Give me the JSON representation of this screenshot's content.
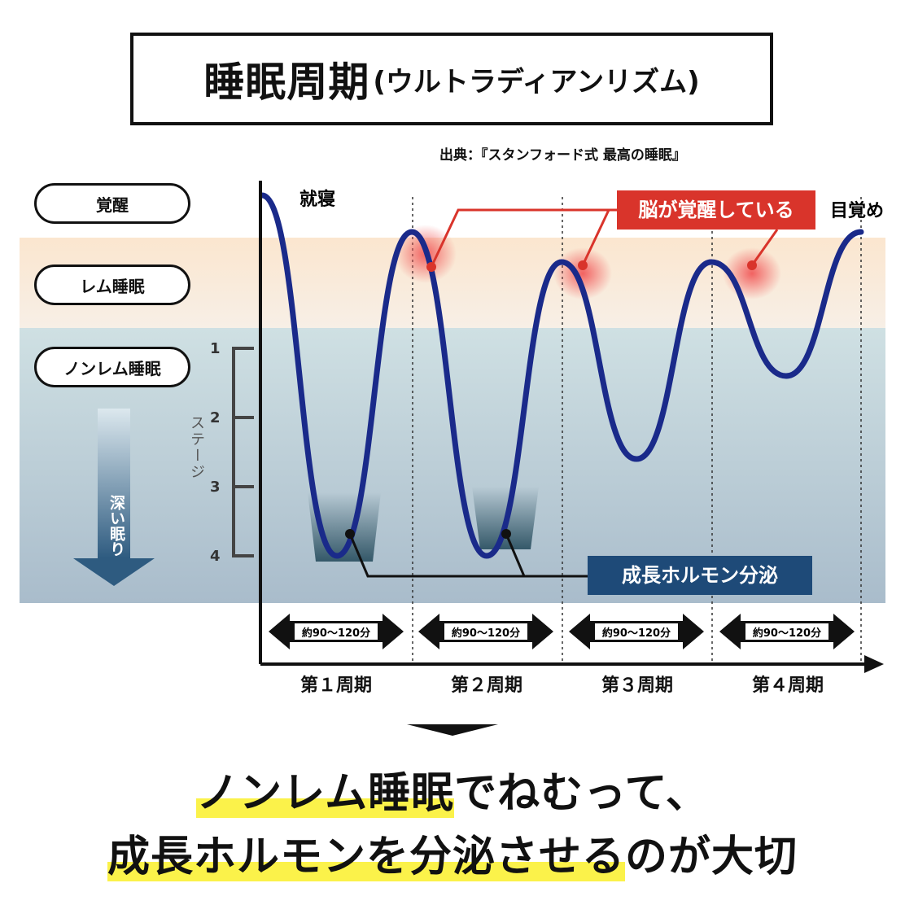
{
  "title": {
    "main": "睡眠周期",
    "sub": "(ウルトラディアンリズム)"
  },
  "source": "出典：『スタンフォード式 最高の睡眠』",
  "stages": {
    "wake": "覚醒",
    "rem": "レム睡眠",
    "nonrem": "ノンレム睡眠"
  },
  "deep_sleep": "深い眠り",
  "stage_axis": {
    "label": "ステージ",
    "ticks": [
      "1",
      "2",
      "3",
      "4"
    ]
  },
  "annotations": {
    "sleep_onset": "就寝",
    "wake_up": "目覚め",
    "brain_awake": "脳が覚醒している",
    "growth_hormone": "成長ホルモン分泌"
  },
  "periods": [
    {
      "label": "第１周期",
      "duration": "約90〜120分"
    },
    {
      "label": "第２周期",
      "duration": "約90〜120分"
    },
    {
      "label": "第３周期",
      "duration": "約90〜120分"
    },
    {
      "label": "第４周期",
      "duration": "約90〜120分"
    }
  ],
  "conclusion": {
    "line1_highlight": "ノンレム睡眠",
    "line1_rest": "でねむって、",
    "line2_highlight": "成長ホルモンを分泌させる",
    "line2_rest": "のが大切"
  },
  "colors": {
    "curve": "#1a2a8a",
    "rem_band": "#fbe9d4",
    "nonrem_band_top": "#cfe0e3",
    "nonrem_band_bottom": "#a9bccb",
    "callout_red": "#d9342b",
    "hormone_box": "#1e4a78",
    "highlight": "#fbf24a"
  },
  "chart_data": {
    "type": "line",
    "xlabel": "",
    "ylabel": "ステージ",
    "y_levels": [
      "覚醒",
      "レム睡眠",
      "1",
      "2",
      "3",
      "4"
    ],
    "series": [
      {
        "points": [
          {
            "cycle": 0.0,
            "stage": "覚醒"
          },
          {
            "cycle": 0.5,
            "stage": "4"
          },
          {
            "cycle": 1.0,
            "stage": "覚醒"
          },
          {
            "cycle": 1.5,
            "stage": "4"
          },
          {
            "cycle": 2.0,
            "stage": "レム睡眠"
          },
          {
            "cycle": 2.5,
            "stage": "2.6"
          },
          {
            "cycle": 3.0,
            "stage": "レム睡眠"
          },
          {
            "cycle": 3.5,
            "stage": "1.4"
          },
          {
            "cycle": 4.0,
            "stage": "覚醒"
          }
        ]
      }
    ]
  }
}
